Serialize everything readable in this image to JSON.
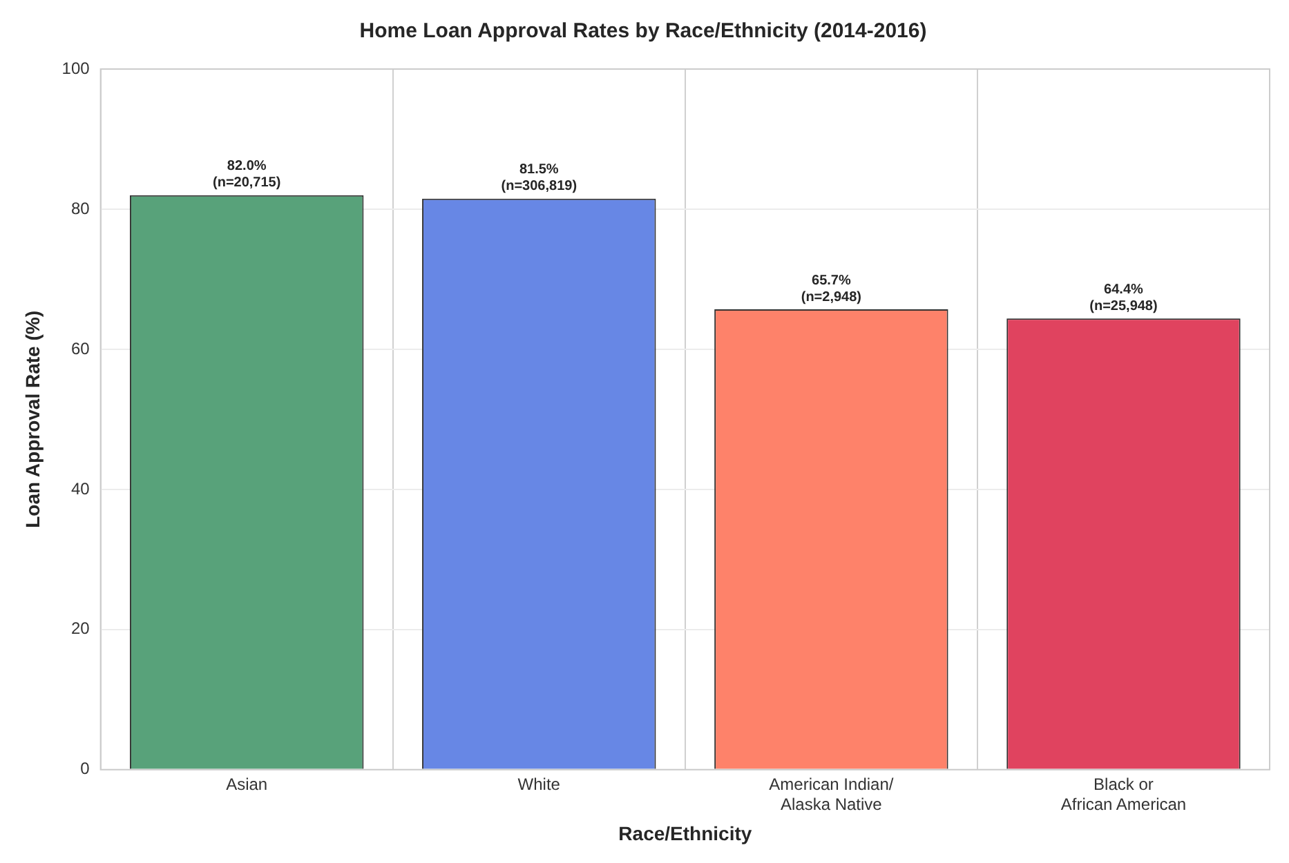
{
  "chart_data": {
    "type": "bar",
    "title": "Home Loan Approval Rates by Race/Ethnicity (2014-2016)",
    "xlabel": "Race/Ethnicity",
    "ylabel": "Loan Approval Rate (%)",
    "categories": [
      "Asian",
      "White",
      "American Indian/\nAlaska Native",
      "Black or\nAfrican American"
    ],
    "values": [
      82.0,
      81.5,
      65.7,
      64.4
    ],
    "colors": [
      "#58a27a",
      "#6787e5",
      "#fe826a",
      "#e0435f"
    ],
    "value_labels": [
      "82.0%\n(n=20,715)",
      "81.5%\n(n=306,819)",
      "65.7%\n(n=2,948)",
      "64.4%\n(n=25,948)"
    ],
    "ylim": [
      0,
      100
    ],
    "yticks": [
      0,
      20,
      40,
      60,
      80,
      100
    ],
    "grid": true,
    "legend": false
  }
}
